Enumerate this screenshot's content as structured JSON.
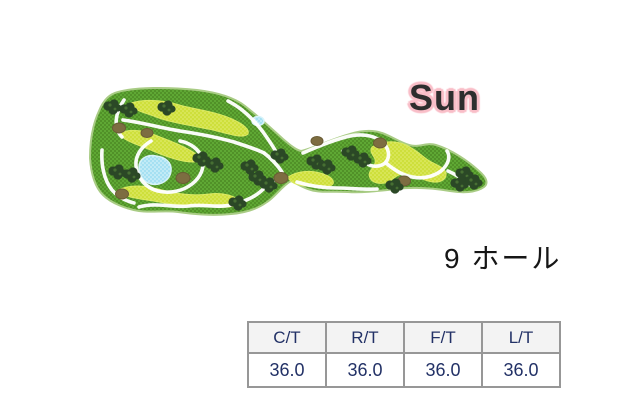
{
  "course_map": {
    "label": "Sun",
    "palette": {
      "turf": "#5fa834",
      "turf_dot": "#47801f",
      "fairway": "#cedf3b",
      "fairway_dot": "#e4ee76",
      "fairway_edge": "#dcea62",
      "tree": "#2b4826",
      "tree_light": "#476f33",
      "sand": "#7d6d41",
      "sand_edge": "#6a5c35",
      "pond": "#a5e0f2",
      "pond_dot": "#e4f8fc",
      "pond_edge": "#d7f3f9",
      "path": "#ffffff",
      "edge": "#a9cc85",
      "label_text": "#2e2e2e",
      "label_glow": "#f9bec8"
    }
  },
  "hole_count": {
    "text": "9 ホール"
  },
  "stats_table": {
    "columns": [
      "C/T",
      "R/T",
      "F/T",
      "L/T"
    ],
    "values": [
      "36.0",
      "36.0",
      "36.0",
      "36.0"
    ],
    "style": {
      "text": "#223166",
      "header_bg": "#f3f3f3",
      "border": "#979797"
    }
  }
}
